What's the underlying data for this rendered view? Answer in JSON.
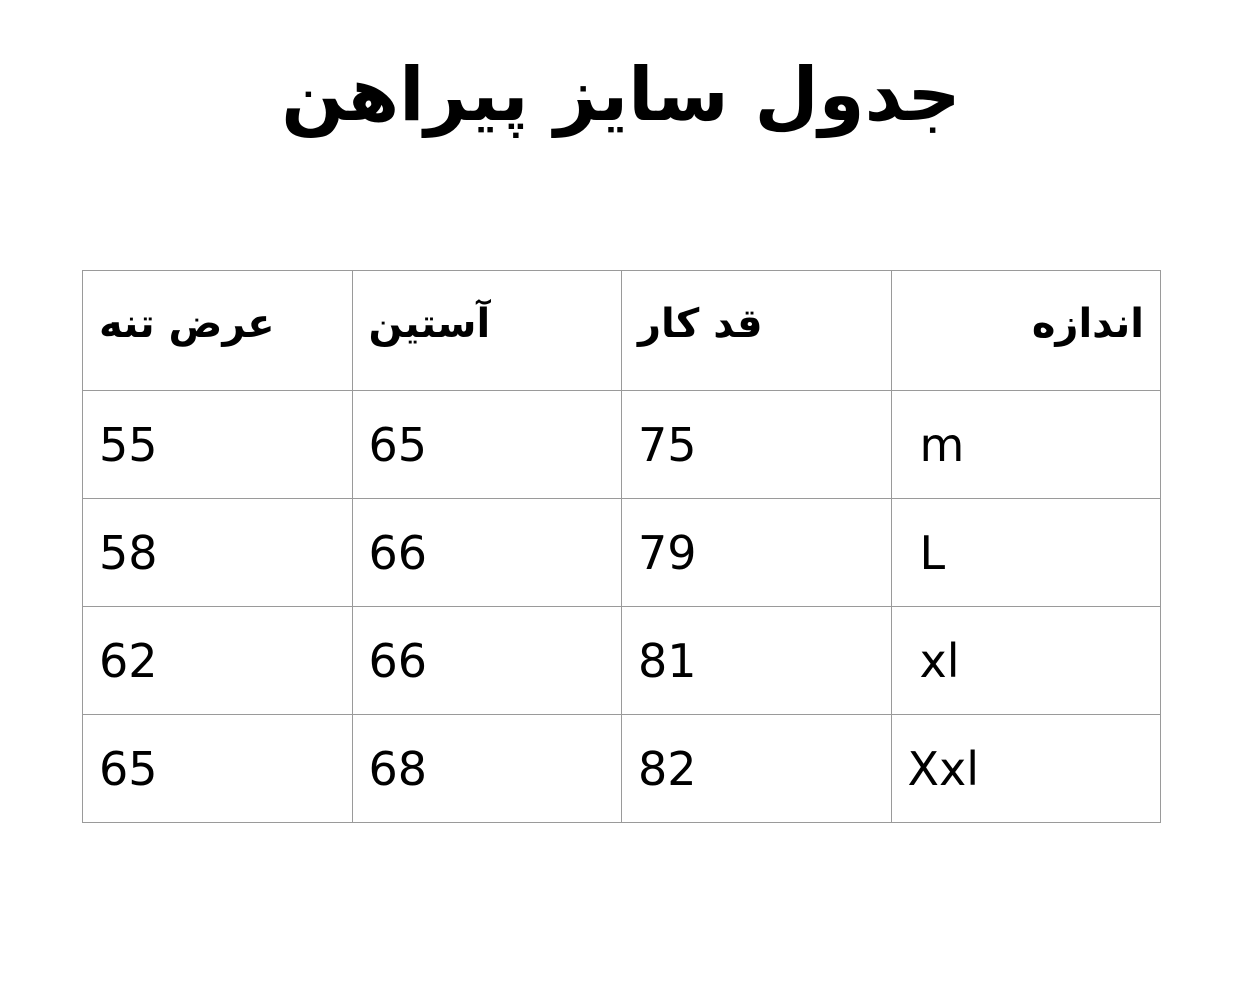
{
  "title": "جدول سایز پیراهن",
  "table": {
    "headers": {
      "size": "اندازه",
      "length": "قد کار",
      "sleeve": "آستین",
      "width": "عرض تنه"
    },
    "rows": [
      {
        "size": "m",
        "length": "75",
        "sleeve": "65",
        "width": "55"
      },
      {
        "size": "L",
        "length": "79",
        "sleeve": "66",
        "width": "58"
      },
      {
        "size": "xl",
        "length": "81",
        "sleeve": "66",
        "width": "62"
      },
      {
        "size": "Xxl",
        "length": "82",
        "sleeve": "68",
        "width": "65"
      }
    ]
  }
}
